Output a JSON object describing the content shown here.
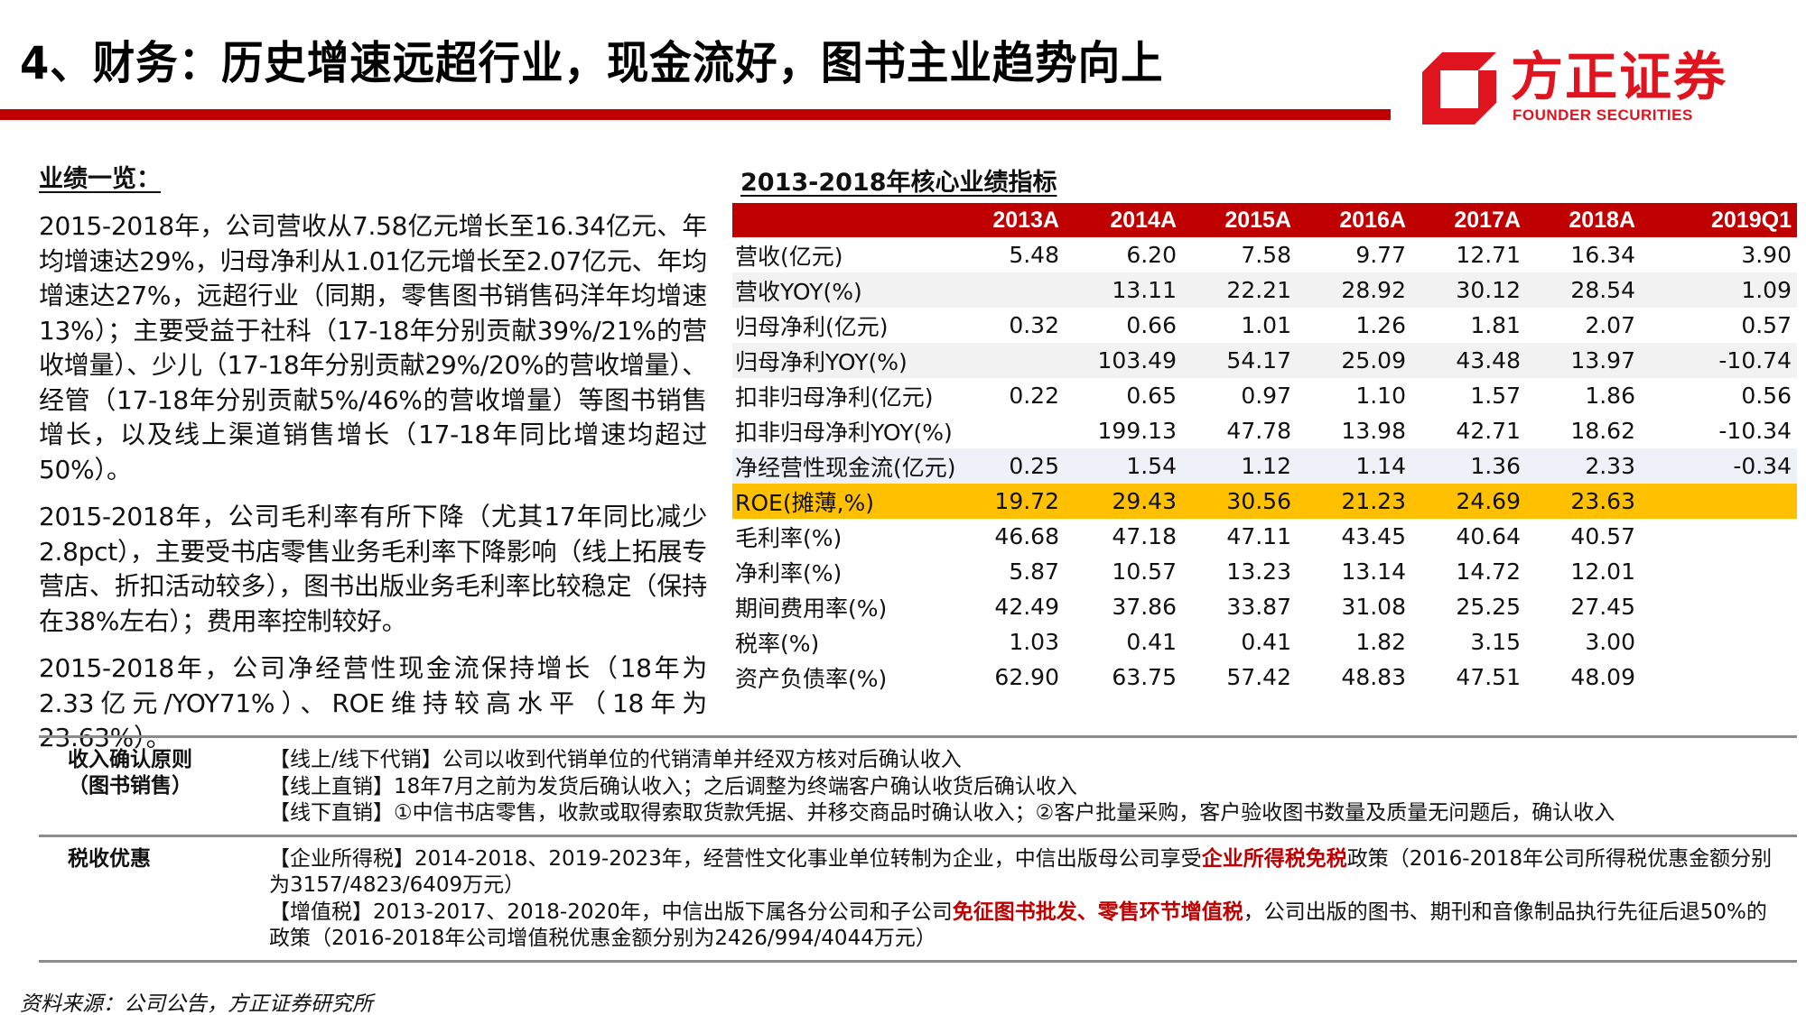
{
  "header": {
    "title": "4、财务：历史增速远超行业，现金流好，图书主业趋势向上",
    "accent_color": "#c00000"
  },
  "logo": {
    "name_cn": "方正证券",
    "name_en": "FOUNDER SECURITIES",
    "brand_color": "#e0141e"
  },
  "summary": {
    "heading": "业绩一览：",
    "paragraphs": [
      "2015-2018年，公司营收从7.58亿元增长至16.34亿元、年均增速达29%，归母净利从1.01亿元增长至2.07亿元、年均增速达27%，远超行业（同期，零售图书销售码洋年均增速13%）；主要受益于社科（17-18年分别贡献39%/21%的营收增量）、少儿（17-18年分别贡献29%/20%的营收增量）、经管（17-18年分别贡献5%/46%的营收增量）等图书销售增长，以及线上渠道销售增长（17-18年同比增速均超过50%）。",
      "2015-2018年，公司毛利率有所下降（尤其17年同比减少2.8pct），主要受书店零售业务毛利率下降影响（线上拓展专营店、折扣活动较多），图书出版业务毛利率比较稳定（保持在38%左右）；费用率控制较好。",
      "2015-2018年，公司净经营性现金流保持增长（18年为2.33亿元/YOY71%）、ROE维持较高水平（18年为23.63%）。"
    ]
  },
  "table": {
    "title": "2013-2018年核心业绩指标",
    "columns": [
      "",
      "2013A",
      "2014A",
      "2015A",
      "2016A",
      "2017A",
      "2018A",
      "2019Q1"
    ],
    "rows": [
      {
        "label": "营收(亿元)",
        "values": [
          "5.48",
          "6.20",
          "7.58",
          "9.77",
          "12.71",
          "16.34",
          "3.90"
        ]
      },
      {
        "label": "营收YOY(%)",
        "values": [
          "",
          "13.11",
          "22.21",
          "28.92",
          "30.12",
          "28.54",
          "1.09"
        ]
      },
      {
        "label": "归母净利(亿元)",
        "values": [
          "0.32",
          "0.66",
          "1.01",
          "1.26",
          "1.81",
          "2.07",
          "0.57"
        ]
      },
      {
        "label": "归母净利YOY(%)",
        "values": [
          "",
          "103.49",
          "54.17",
          "25.09",
          "43.48",
          "13.97",
          "-10.74"
        ]
      },
      {
        "label": "扣非归母净利(亿元)",
        "values": [
          "0.22",
          "0.65",
          "0.97",
          "1.10",
          "1.57",
          "1.86",
          "0.56"
        ]
      },
      {
        "label": "扣非归母净利YOY(%)",
        "values": [
          "",
          "199.13",
          "47.78",
          "13.98",
          "42.71",
          "18.62",
          "-10.34"
        ]
      },
      {
        "label": "净经营性现金流(亿元)",
        "values": [
          "0.25",
          "1.54",
          "1.12",
          "1.14",
          "1.36",
          "2.33",
          "-0.34"
        ]
      },
      {
        "label": "ROE(摊薄,%)",
        "values": [
          "19.72",
          "29.43",
          "30.56",
          "21.23",
          "24.69",
          "23.63",
          ""
        ]
      },
      {
        "label": "毛利率(%)",
        "values": [
          "46.68",
          "47.18",
          "47.11",
          "43.45",
          "40.64",
          "40.57",
          ""
        ]
      },
      {
        "label": "净利率(%)",
        "values": [
          "5.87",
          "10.57",
          "13.23",
          "13.14",
          "14.72",
          "12.01",
          ""
        ]
      },
      {
        "label": "期间费用率(%)",
        "values": [
          "42.49",
          "37.86",
          "33.87",
          "31.08",
          "25.25",
          "27.45",
          ""
        ]
      },
      {
        "label": "税率(%)",
        "values": [
          "1.03",
          "0.41",
          "0.41",
          "1.82",
          "3.15",
          "3.00",
          ""
        ]
      },
      {
        "label": "资产负债率(%)",
        "values": [
          "62.90",
          "63.75",
          "57.42",
          "48.83",
          "47.51",
          "48.09",
          ""
        ]
      }
    ],
    "highlight_color": "#ffc000",
    "header_color": "#c00000"
  },
  "notes": {
    "revenue_recognition": {
      "label_line1": "收入确认原则",
      "label_line2": "（图书销售）",
      "lines": [
        "【线上/线下代销】公司以收到代销单位的代销清单并经双方核对后确认收入",
        "【线上直销】18年7月之前为发货后确认收入；之后调整为终端客户确认收货后确认收入",
        "【线下直销】①中信书店零售，收款或取得索取货款凭据、并移交商品时确认收入；②客户批量采购，客户验收图书数量及质量无问题后，确认收入"
      ]
    },
    "tax": {
      "label": "税收优惠",
      "cit_prefix": "【企业所得税】2014-2018、2019-2023年，经营性文化事业单位转制为企业，中信出版母公司享受",
      "cit_highlight": "企业所得税免税",
      "cit_suffix": "政策（2016-2018年公司所得税优惠金额分别为3157/4823/6409万元）",
      "vat_prefix": "【增值税】2013-2017、2018-2020年，中信出版下属各分公司和子公司",
      "vat_highlight": "免征图书批发、零售环节增值税",
      "vat_suffix": "，公司出版的图书、期刊和音像制品执行先征后退50%的政策（2016-2018年公司增值税优惠金额分别为2426/994/4044万元）"
    }
  },
  "footer": {
    "source": "资料来源：公司公告，方正证券研究所"
  }
}
